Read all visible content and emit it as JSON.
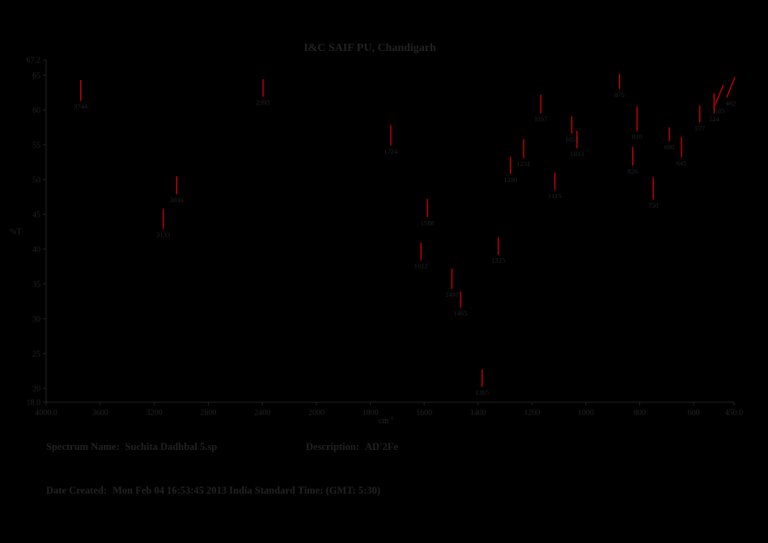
{
  "header": {
    "title": "I&C SAIF PU, Chandigarh"
  },
  "colors": {
    "background": "#000000",
    "text": "#222222",
    "peak_marker": "#dd0000"
  },
  "chart_data": {
    "type": "line",
    "title": "I&C SAIF PU, Chandigarh",
    "xlabel": "cm-1",
    "ylabel": "%T",
    "x_axis": {
      "min": 450.0,
      "max": 4000.0,
      "direction": "decreasing left to right",
      "scale_break_at": 2000,
      "note": "region 4000-2000 compressed 2x relative to 2000-450",
      "tick_labels": [
        "4000.0",
        "3600",
        "3200",
        "2800",
        "2400",
        "2000",
        "1800",
        "1600",
        "1400",
        "1200",
        "1000",
        "800",
        "600",
        "450.0"
      ]
    },
    "y_axis": {
      "min": 18.0,
      "max": 67.2,
      "tick_labels": [
        "67.2",
        "65",
        "60",
        "55",
        "50",
        "45",
        "40",
        "35",
        "30",
        "25",
        "20",
        "18.0"
      ]
    },
    "grid": false,
    "legend": false,
    "peaks": [
      {
        "label": "3744",
        "wavenumber": 3744,
        "transmittance": 61.3,
        "tick_top": 64.3
      },
      {
        "label": "3133",
        "wavenumber": 3133,
        "transmittance": 42.9,
        "tick_top": 45.8
      },
      {
        "label": "3034",
        "wavenumber": 3034,
        "transmittance": 47.9,
        "tick_top": 50.5
      },
      {
        "label": "2395",
        "wavenumber": 2395,
        "transmittance": 61.9,
        "tick_top": 64.4
      },
      {
        "label": "1724",
        "wavenumber": 1724,
        "transmittance": 54.9,
        "tick_top": 57.8
      },
      {
        "label": "1612",
        "wavenumber": 1612,
        "transmittance": 38.4,
        "tick_top": 40.9
      },
      {
        "label": "1588",
        "wavenumber": 1588,
        "transmittance": 44.6,
        "tick_top": 47.2
      },
      {
        "label": "1497",
        "wavenumber": 1497,
        "transmittance": 34.3,
        "tick_top": 37.2
      },
      {
        "label": "1465",
        "wavenumber": 1465,
        "transmittance": 31.6,
        "tick_top": 33.9
      },
      {
        "label": "1385",
        "wavenumber": 1385,
        "transmittance": 20.2,
        "tick_top": 22.7
      },
      {
        "label": "1325",
        "wavenumber": 1325,
        "transmittance": 39.2,
        "tick_top": 41.7
      },
      {
        "label": "1280",
        "wavenumber": 1280,
        "transmittance": 50.8,
        "tick_top": 53.3
      },
      {
        "label": "1231",
        "wavenumber": 1231,
        "transmittance": 53.1,
        "tick_top": 55.8
      },
      {
        "label": "1167",
        "wavenumber": 1167,
        "transmittance": 59.5,
        "tick_top": 62.2
      },
      {
        "label": "1115",
        "wavenumber": 1115,
        "transmittance": 48.5,
        "tick_top": 51.0
      },
      {
        "label": "1052",
        "wavenumber": 1052,
        "transmittance": 56.6,
        "tick_top": 59.1
      },
      {
        "label": "1033",
        "wavenumber": 1033,
        "transmittance": 54.5,
        "tick_top": 57.0
      },
      {
        "label": "875",
        "wavenumber": 875,
        "transmittance": 63.0,
        "tick_top": 65.2
      },
      {
        "label": "826",
        "wavenumber": 826,
        "transmittance": 52.0,
        "tick_top": 54.7
      },
      {
        "label": "810",
        "wavenumber": 810,
        "transmittance": 57.0,
        "tick_top": 60.5
      },
      {
        "label": "750",
        "wavenumber": 750,
        "transmittance": 47.1,
        "tick_top": 50.3
      },
      {
        "label": "690",
        "wavenumber": 690,
        "transmittance": 55.5,
        "tick_top": 57.5
      },
      {
        "label": "645",
        "wavenumber": 645,
        "transmittance": 53.2,
        "tick_top": 56.1
      },
      {
        "label": "577",
        "wavenumber": 577,
        "transmittance": 58.2,
        "tick_top": 60.6
      },
      {
        "label": "524",
        "wavenumber": 524,
        "transmittance": 59.5,
        "tick_top": 62.4
      },
      {
        "label": "505",
        "wavenumber": 505,
        "transmittance": 60.7,
        "tick_top": 63.6,
        "slant": true
      },
      {
        "label": "462",
        "wavenumber": 462,
        "transmittance": 61.8,
        "tick_top": 64.7,
        "slant": true
      }
    ]
  },
  "footer": {
    "spectrum_name_label": "Spectrum Name:",
    "spectrum_name": "Suchita Dadhbal 5.sp",
    "description_label": "Description:",
    "description": "AD'2Fe",
    "date_label": "Date Created:",
    "date": "Mon Feb 04 16:53:45 2013 India Standard Time: (GMT: 5:30)"
  }
}
